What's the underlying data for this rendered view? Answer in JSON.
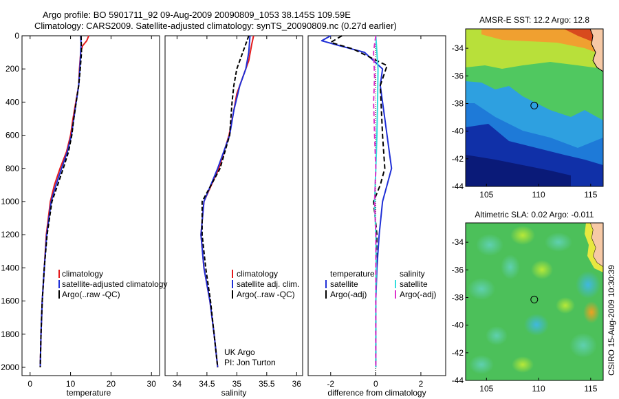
{
  "header": {
    "line1": "Argo profile: BO 5901711_92 09-Aug-2009 20090809_1053 38.145S 109.59E",
    "line2": "Climatology: CARS2009. Satellite-adjusted climatology: synTS_20090809.nc (0.27d earlier)"
  },
  "side_label": "CSIRO 15-Aug-2009 10:30:39",
  "colors": {
    "climatology": "#e41a1c",
    "satellite": "#1f2fd6",
    "argo": "#000000",
    "temp_diff_sat": "#1f2fd6",
    "sal_diff_sat": "#33dddd",
    "sal_diff_argo": "#dd33cc",
    "land": "#f6c9a6"
  },
  "chart_data": [
    {
      "type": "line",
      "xlabel": "temperature",
      "ylabel": "",
      "xlim": [
        -2,
        32
      ],
      "ylim": [
        0,
        2050
      ],
      "y_reversed": true,
      "xticks": [
        0,
        10,
        20,
        30
      ],
      "yticks": [
        0,
        200,
        400,
        600,
        800,
        1000,
        1200,
        1400,
        1600,
        1800,
        2000
      ],
      "legend": [
        "climatology",
        "satellite-adjusted climatology",
        "Argo(..raw -QC)"
      ],
      "series": [
        {
          "name": "climatology",
          "color": "climatology",
          "dash": "",
          "points": [
            [
              14.5,
              0
            ],
            [
              14,
              30
            ],
            [
              13,
              60
            ],
            [
              12.5,
              100
            ],
            [
              12.2,
              200
            ],
            [
              12,
              300
            ],
            [
              11.3,
              400
            ],
            [
              10.6,
              500
            ],
            [
              10,
              600
            ],
            [
              9,
              700
            ],
            [
              7.4,
              800
            ],
            [
              6,
              900
            ],
            [
              5,
              1000
            ],
            [
              4,
              1200
            ],
            [
              3.5,
              1400
            ],
            [
              3,
              1600
            ],
            [
              2.7,
              1800
            ],
            [
              2.5,
              2000
            ]
          ]
        },
        {
          "name": "satellite-adjusted climatology",
          "color": "satellite",
          "dash": "",
          "points": [
            [
              12.5,
              0
            ],
            [
              12.6,
              50
            ],
            [
              12.5,
              100
            ],
            [
              12.3,
              200
            ],
            [
              12,
              300
            ],
            [
              11.4,
              400
            ],
            [
              10.8,
              500
            ],
            [
              10.2,
              600
            ],
            [
              9.2,
              700
            ],
            [
              7.8,
              800
            ],
            [
              6.4,
              900
            ],
            [
              5.2,
              1000
            ],
            [
              4.1,
              1200
            ],
            [
              3.5,
              1400
            ],
            [
              3,
              1600
            ],
            [
              2.7,
              1800
            ],
            [
              2.5,
              2000
            ]
          ]
        },
        {
          "name": "Argo(..raw -QC)",
          "color": "argo",
          "dash": "6 3",
          "points": [
            [
              12.6,
              0
            ],
            [
              12.7,
              100
            ],
            [
              12.4,
              200
            ],
            [
              12,
              300
            ],
            [
              11.4,
              400
            ],
            [
              10.8,
              500
            ],
            [
              10.3,
              600
            ],
            [
              9.5,
              700
            ],
            [
              8.2,
              800
            ],
            [
              6.8,
              900
            ],
            [
              5.4,
              1000
            ],
            [
              4.2,
              1200
            ],
            [
              3.5,
              1400
            ],
            [
              3,
              1600
            ],
            [
              2.7,
              1800
            ],
            [
              2.5,
              2000
            ]
          ]
        }
      ]
    },
    {
      "type": "line",
      "xlabel": "salinity",
      "ylabel": "",
      "xlim": [
        33.8,
        36.1
      ],
      "ylim": [
        0,
        2050
      ],
      "y_reversed": true,
      "xticks": [
        34,
        34.5,
        35,
        35.5,
        36
      ],
      "yticks": [],
      "legend": [
        "climatology",
        "satellite adj. clim.",
        "Argo(..raw -QC)"
      ],
      "annotation": [
        "UK Argo",
        "PI: Jon Turton"
      ],
      "series": [
        {
          "name": "climatology",
          "color": "climatology",
          "dash": "",
          "points": [
            [
              35.28,
              0
            ],
            [
              35.25,
              50
            ],
            [
              35.2,
              150
            ],
            [
              35.1,
              250
            ],
            [
              35,
              350
            ],
            [
              34.95,
              450
            ],
            [
              34.87,
              600
            ],
            [
              34.7,
              800
            ],
            [
              34.45,
              1000
            ],
            [
              34.4,
              1200
            ],
            [
              34.45,
              1400
            ],
            [
              34.55,
              1600
            ],
            [
              34.62,
              1800
            ],
            [
              34.68,
              2000
            ]
          ]
        },
        {
          "name": "satellite adj. clim.",
          "color": "satellite",
          "dash": "",
          "points": [
            [
              35.22,
              0
            ],
            [
              35.2,
              100
            ],
            [
              35.15,
              200
            ],
            [
              35.05,
              300
            ],
            [
              34.95,
              450
            ],
            [
              34.88,
              600
            ],
            [
              34.68,
              800
            ],
            [
              34.45,
              1000
            ],
            [
              34.4,
              1200
            ],
            [
              34.45,
              1400
            ],
            [
              34.55,
              1600
            ],
            [
              34.62,
              1800
            ],
            [
              34.68,
              2000
            ]
          ]
        },
        {
          "name": "Argo(..raw -QC)",
          "color": "argo",
          "dash": "6 3",
          "points": [
            [
              35.2,
              0
            ],
            [
              35.1,
              100
            ],
            [
              35,
              200
            ],
            [
              34.95,
              300
            ],
            [
              34.92,
              400
            ],
            [
              34.88,
              600
            ],
            [
              34.72,
              800
            ],
            [
              34.42,
              1000
            ],
            [
              34.42,
              1200
            ],
            [
              34.48,
              1400
            ],
            [
              34.56,
              1600
            ],
            [
              34.62,
              1800
            ],
            [
              34.68,
              2000
            ]
          ]
        }
      ]
    },
    {
      "type": "line",
      "xlabel": "difference from climatology",
      "ylabel": "",
      "xlim": [
        -3,
        3.1
      ],
      "ylim": [
        0,
        2050
      ],
      "y_reversed": true,
      "xticks": [
        -2,
        0,
        2
      ],
      "yticks": [],
      "legend_groups": [
        {
          "title": "temperature",
          "items": [
            "satellite",
            "Argo(-adj)"
          ]
        },
        {
          "title": "salinity",
          "items": [
            "satellite",
            "Argo(-adj)"
          ]
        }
      ],
      "series": [
        {
          "name": "temperature satellite",
          "color": "temp_diff_sat",
          "dash": "",
          "points": [
            [
              -2,
              0
            ],
            [
              -2.4,
              30
            ],
            [
              -1.6,
              60
            ],
            [
              -0.5,
              100
            ],
            [
              0.3,
              200
            ],
            [
              0.2,
              300
            ],
            [
              0.4,
              500
            ],
            [
              0.6,
              700
            ],
            [
              0.7,
              800
            ],
            [
              0.5,
              900
            ],
            [
              0.3,
              1000
            ],
            [
              0.15,
              1200
            ],
            [
              0.05,
              1400
            ],
            [
              0,
              1600
            ],
            [
              0,
              2000
            ]
          ]
        },
        {
          "name": "temperature Argo(-adj)",
          "color": "argo",
          "dash": "7 4",
          "points": [
            [
              -1.5,
              0
            ],
            [
              -2,
              40
            ],
            [
              -1,
              80
            ],
            [
              0.5,
              180
            ],
            [
              0.2,
              300
            ],
            [
              0.3,
              600
            ],
            [
              0.4,
              800
            ],
            [
              0.2,
              900
            ],
            [
              -0.1,
              1000
            ],
            [
              0.05,
              1200
            ],
            [
              0.02,
              1400
            ],
            [
              0,
              1600
            ],
            [
              0,
              2000
            ]
          ]
        },
        {
          "name": "salinity satellite",
          "color": "sal_diff_sat",
          "dash": "",
          "points": [
            [
              0,
              0
            ],
            [
              0.05,
              100
            ],
            [
              0.1,
              200
            ],
            [
              0.08,
              400
            ],
            [
              0.05,
              600
            ],
            [
              0,
              800
            ],
            [
              -0.05,
              1000
            ],
            [
              0,
              1200
            ],
            [
              0.02,
              1400
            ],
            [
              0,
              1600
            ],
            [
              0,
              2000
            ]
          ]
        },
        {
          "name": "salinity Argo(-adj)",
          "color": "sal_diff_argo",
          "dash": "7 4",
          "points": [
            [
              0,
              0
            ],
            [
              -0.1,
              100
            ],
            [
              -0.05,
              250
            ],
            [
              -0.1,
              400
            ],
            [
              -0.05,
              600
            ],
            [
              0,
              800
            ],
            [
              -0.05,
              1000
            ],
            [
              0,
              1200
            ],
            [
              0,
              1400
            ],
            [
              0,
              1600
            ],
            [
              0,
              2000
            ]
          ]
        }
      ]
    },
    {
      "type": "heatmap",
      "title": "AMSR-E SST: 12.2 Argo: 12.8",
      "xlim": [
        103,
        116.2
      ],
      "ylim": [
        -44,
        -32.6
      ],
      "xticks": [
        105,
        110,
        115
      ],
      "yticks": [
        -34,
        -36,
        -38,
        -40,
        -42,
        -44
      ],
      "marker": [
        109.59,
        -38.145
      ]
    },
    {
      "type": "heatmap",
      "title": "Altimetric SLA: 0.02 Argo: -0.011",
      "xlim": [
        103,
        116.2
      ],
      "ylim": [
        -44,
        -32.6
      ],
      "xticks": [
        105,
        110,
        115
      ],
      "yticks": [
        -34,
        -36,
        -38,
        -40,
        -42,
        -44
      ],
      "marker": [
        109.59,
        -38.145
      ]
    }
  ]
}
